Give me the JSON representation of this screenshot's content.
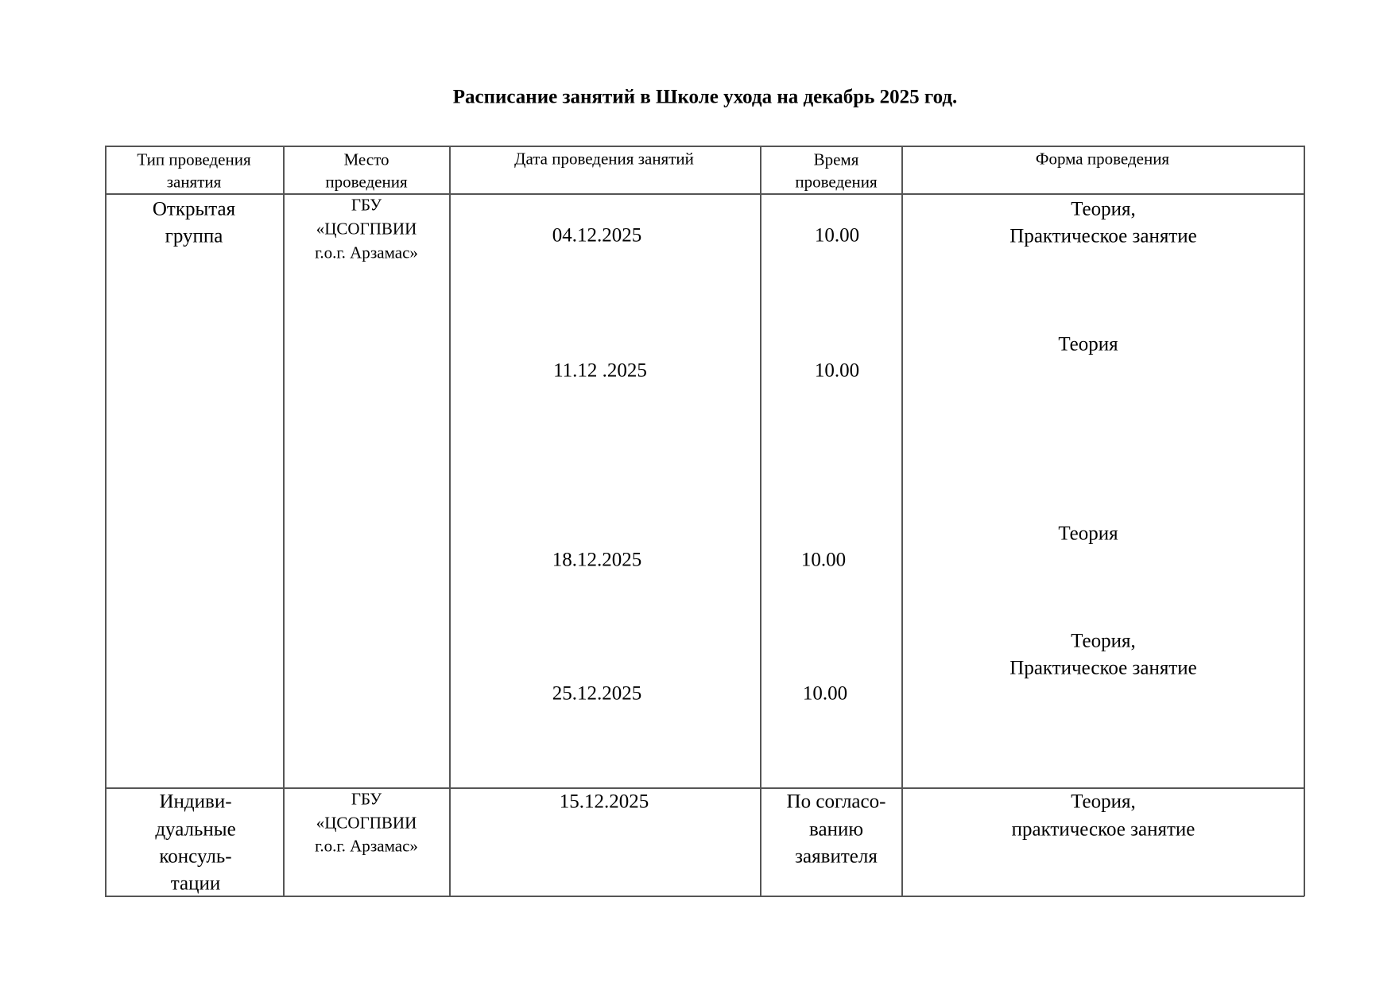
{
  "title": "Расписание занятий в Школе ухода на  декабрь 2025 год.",
  "table": {
    "headers": [
      "Тип проведения занятия",
      "Место проведения",
      "Дата проведения занятий",
      "Время проведения",
      "Форма проведения"
    ],
    "header_lines": [
      [
        "Тип проведения",
        "занятия"
      ],
      [
        "Место",
        "проведения"
      ],
      [
        "Дата проведения занятий"
      ],
      [
        "Время",
        "проведения"
      ],
      [
        "Форма проведения"
      ]
    ],
    "rows": [
      {
        "type": [
          "Открытая",
          "группа"
        ],
        "place": [
          "ГБУ",
          "«ЦСОГПВИИ",
          "г.о.г. Арзамас»"
        ],
        "sessions": [
          {
            "date": "04.12.2025",
            "time": "10.00",
            "form": [
              "Теория,",
              "Практическое занятие"
            ]
          },
          {
            "date": "11.12 .2025",
            "time": "10.00",
            "form": [
              "Теория"
            ]
          },
          {
            "date": "18.12.2025",
            "time": "10.00",
            "form": [
              "Теория"
            ]
          },
          {
            "date": "25.12.2025",
            "time": "10.00",
            "form": [
              "Теория,",
              "Практическое занятие"
            ]
          }
        ]
      },
      {
        "type": [
          "Индиви-",
          "дуальные",
          "консуль-",
          "тации"
        ],
        "place": [
          "ГБУ",
          "«ЦСОГПВИИ",
          "г.о.г. Арзамас»"
        ],
        "date": "15.12.2025",
        "time": [
          "По согласо-",
          "ванию",
          "заявителя"
        ],
        "form": [
          "Теория,",
          "практическое занятие"
        ]
      }
    ]
  }
}
